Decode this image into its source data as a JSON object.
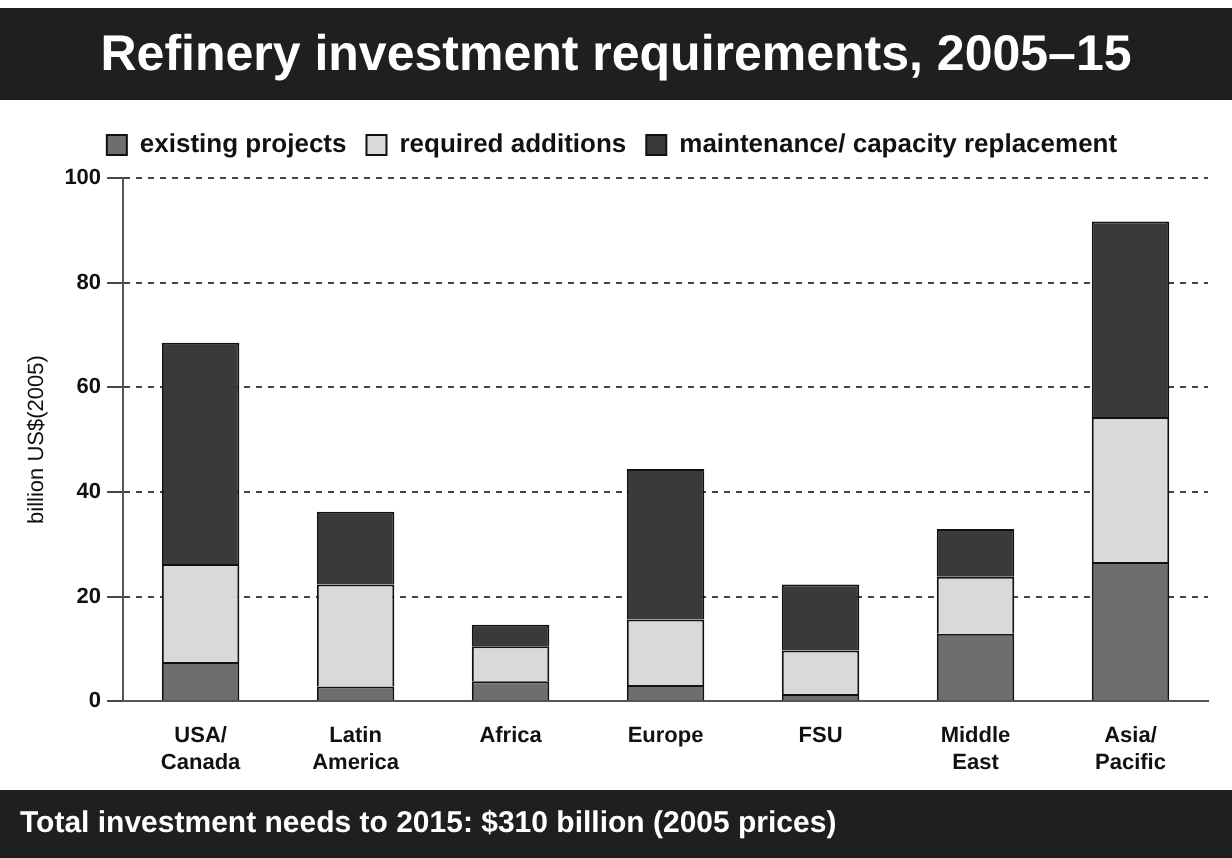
{
  "chart_data": {
    "type": "bar",
    "title": "Refinery investment requirements, 2005–15",
    "ylabel": "billion US$(2005)",
    "annotations": [
      "Total investment needs to 2015: $310 billion (2005 prices)"
    ],
    "categories": [
      "USA/ Canada",
      "Latin America",
      "Africa",
      "Europe",
      "FSU",
      "Middle East",
      "Asia/ Pacific"
    ],
    "stacked": true,
    "series": [
      {
        "name": "existing projects",
        "color": "#6e6e6e",
        "values": [
          7.5,
          2.8,
          3.8,
          3.1,
          1.4,
          12.9,
          26.6
        ]
      },
      {
        "name": "required additions",
        "color": "#d9d9d9",
        "values": [
          18.7,
          19.5,
          6.7,
          12.5,
          8.3,
          10.9,
          27.7
        ]
      },
      {
        "name": "maintenance/ capacity replacement",
        "color": "#3a3a3a",
        "values": [
          42.3,
          13.9,
          4.1,
          28.8,
          12.6,
          9.1,
          37.4
        ]
      }
    ],
    "ylim": [
      0,
      100
    ],
    "yticks": [
      0,
      20,
      40,
      60,
      80,
      100
    ],
    "grid": "y",
    "legend": "top"
  }
}
